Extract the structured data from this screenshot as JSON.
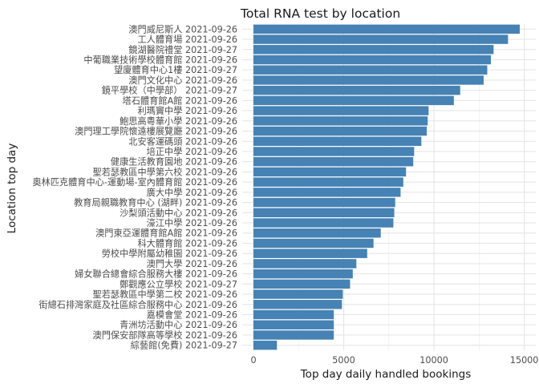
{
  "chart_data": {
    "type": "bar",
    "orientation": "horizontal",
    "title": "Total RNA test by location",
    "xlabel": "Top day daily handled bookings",
    "ylabel": "Location top day",
    "xlim": [
      0,
      15800
    ],
    "x_ticks": [
      0,
      5000,
      10000,
      15000
    ],
    "x_tick_labels": [
      "0",
      "5000",
      "10000",
      "15000"
    ],
    "grid": true,
    "bar_color": "#4682b4",
    "categories": [
      "澳門威尼斯人 2021-09-26",
      "工人體育場 2021-09-26",
      "鏡湖醫院禮堂 2021-09-27",
      "中葡職業技術學校體育館 2021-09-26",
      "望廈體育中心1樓 2021-09-27",
      "澳門文化中心 2021-09-26",
      "鏡平學校（中學部） 2021-09-27",
      "塔石體育館A館 2021-09-26",
      "利瑪竇中學 2021-09-26",
      "鮑思高粵華小學 2021-09-26",
      "澳門理工學院懷遠樓展覽廳 2021-09-26",
      "北安客運碼頭 2021-09-26",
      "培正中學 2021-09-26",
      "健康生活教育園地 2021-09-26",
      "聖若瑟教區中學第六校 2021-09-26",
      "奧林匹克體育中心-運動場-室內體育館 2021-09-26",
      "廣大中學 2021-09-26",
      "教育局親職教育中心 (湖畔) 2021-09-26",
      "沙梨頭活動中心 2021-09-26",
      "濠江中學 2021-09-26",
      "澳門東亞運體育館A館 2021-09-26",
      "科大體育館 2021-09-26",
      "勞校中學附屬幼稚園 2021-09-26",
      "澳門大學 2021-09-26",
      "婦女聯合總會綜合服務大樓 2021-09-26",
      "鄭觀應公立學校 2021-09-27",
      "聖若瑟教區中學第二校 2021-09-26",
      "街總石排灣家庭及社區綜合服務中心 2021-09-26",
      "嘉模會堂 2021-09-26",
      "青洲坊活動中心 2021-09-26",
      "澳門保安部隊高等學校 2021-09-26",
      "綜藝館(免費) 2021-09-27"
    ],
    "values": [
      14750,
      14100,
      13300,
      13150,
      12950,
      12750,
      11450,
      11100,
      9700,
      9650,
      9600,
      9300,
      8900,
      8850,
      8450,
      8300,
      8150,
      7850,
      7800,
      7750,
      7050,
      6650,
      6300,
      5700,
      5500,
      5350,
      4950,
      4900,
      4450,
      4450,
      4450,
      1300
    ]
  }
}
